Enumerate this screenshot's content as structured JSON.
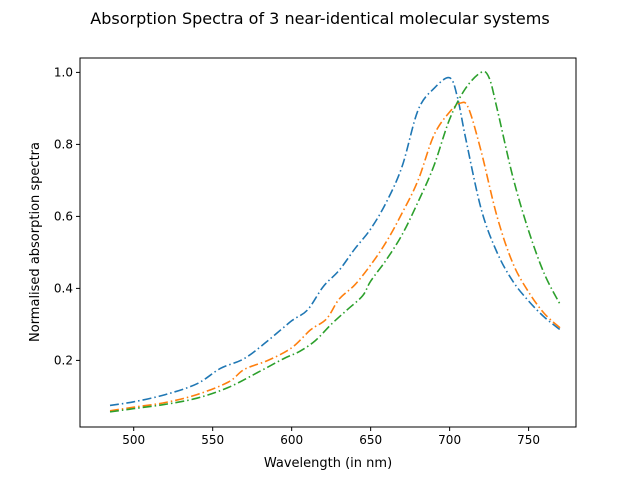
{
  "chart_data": {
    "type": "line",
    "title": "Absorption Spectra of 3 near-identical molecular systems",
    "xlabel": "Wavelength (in nm)",
    "ylabel": "Normalised absorption spectra",
    "xlim": [
      466,
      780
    ],
    "ylim": [
      0.015,
      1.04
    ],
    "xticks": [
      500,
      550,
      600,
      650,
      700,
      750
    ],
    "yticks": [
      0.2,
      0.4,
      0.6,
      0.8,
      1.0
    ],
    "xtick_labels": [
      "500",
      "550",
      "600",
      "650",
      "700",
      "750"
    ],
    "ytick_labels": [
      "0.2",
      "0.4",
      "0.6",
      "0.8",
      "1.0"
    ],
    "grid": false,
    "legend": "none",
    "line_style": "dash-dot",
    "series": [
      {
        "color": "#1f77b4",
        "points": [
          [
            485,
            0.075
          ],
          [
            500,
            0.085
          ],
          [
            520,
            0.105
          ],
          [
            540,
            0.135
          ],
          [
            555,
            0.178
          ],
          [
            570,
            0.205
          ],
          [
            585,
            0.255
          ],
          [
            600,
            0.31
          ],
          [
            610,
            0.34
          ],
          [
            620,
            0.405
          ],
          [
            630,
            0.45
          ],
          [
            640,
            0.51
          ],
          [
            650,
            0.565
          ],
          [
            660,
            0.64
          ],
          [
            670,
            0.74
          ],
          [
            680,
            0.895
          ],
          [
            690,
            0.955
          ],
          [
            700,
            0.985
          ],
          [
            705,
            0.93
          ],
          [
            710,
            0.82
          ],
          [
            720,
            0.62
          ],
          [
            730,
            0.5
          ],
          [
            740,
            0.42
          ],
          [
            750,
            0.365
          ],
          [
            760,
            0.32
          ],
          [
            770,
            0.285
          ]
        ]
      },
      {
        "color": "#ff7f0e",
        "points": [
          [
            485,
            0.06
          ],
          [
            500,
            0.07
          ],
          [
            520,
            0.083
          ],
          [
            540,
            0.105
          ],
          [
            560,
            0.14
          ],
          [
            570,
            0.175
          ],
          [
            585,
            0.2
          ],
          [
            600,
            0.235
          ],
          [
            612,
            0.285
          ],
          [
            622,
            0.315
          ],
          [
            630,
            0.37
          ],
          [
            640,
            0.41
          ],
          [
            650,
            0.465
          ],
          [
            660,
            0.53
          ],
          [
            670,
            0.61
          ],
          [
            680,
            0.7
          ],
          [
            690,
            0.825
          ],
          [
            700,
            0.89
          ],
          [
            707,
            0.915
          ],
          [
            712,
            0.9
          ],
          [
            720,
            0.78
          ],
          [
            730,
            0.6
          ],
          [
            740,
            0.47
          ],
          [
            750,
            0.39
          ],
          [
            760,
            0.33
          ],
          [
            770,
            0.29
          ]
        ]
      },
      {
        "color": "#2ca02c",
        "points": [
          [
            485,
            0.057
          ],
          [
            500,
            0.066
          ],
          [
            520,
            0.078
          ],
          [
            540,
            0.095
          ],
          [
            560,
            0.125
          ],
          [
            580,
            0.17
          ],
          [
            595,
            0.205
          ],
          [
            605,
            0.225
          ],
          [
            615,
            0.255
          ],
          [
            625,
            0.3
          ],
          [
            635,
            0.34
          ],
          [
            645,
            0.38
          ],
          [
            650,
            0.42
          ],
          [
            660,
            0.48
          ],
          [
            670,
            0.55
          ],
          [
            680,
            0.64
          ],
          [
            690,
            0.74
          ],
          [
            700,
            0.87
          ],
          [
            710,
            0.955
          ],
          [
            720,
            1.0
          ],
          [
            725,
            0.985
          ],
          [
            730,
            0.9
          ],
          [
            740,
            0.71
          ],
          [
            750,
            0.56
          ],
          [
            760,
            0.44
          ],
          [
            770,
            0.355
          ]
        ]
      }
    ]
  }
}
